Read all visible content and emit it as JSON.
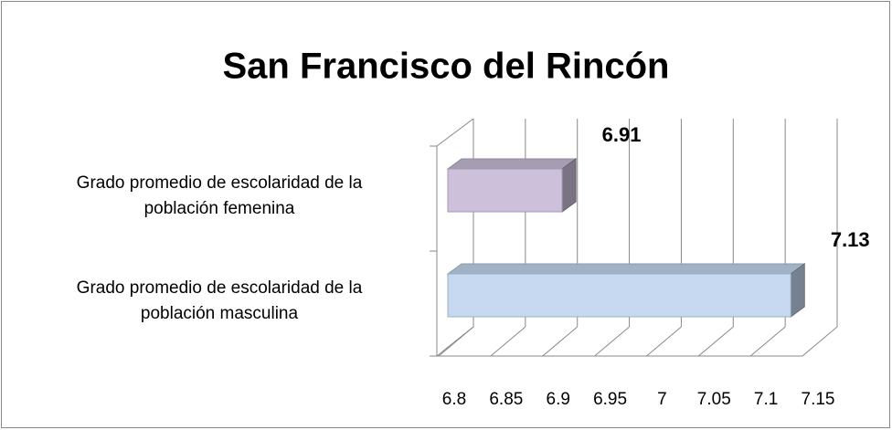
{
  "chart_data": {
    "type": "bar3d",
    "title": "San Francisco del Rincón",
    "categories": [
      "Grado promedio de escolaridad de la población femenina",
      "Grado promedio de escolaridad de la población masculina"
    ],
    "series": [
      {
        "name": null,
        "colors": [
          "#ccc0da",
          "#c6d9f1"
        ],
        "values": [
          6.91,
          7.13
        ]
      }
    ],
    "xlim": [
      6.8,
      7.15
    ],
    "xticks": [
      6.8,
      6.85,
      6.9,
      6.95,
      7,
      7.05,
      7.1,
      7.15
    ],
    "grid": true
  }
}
